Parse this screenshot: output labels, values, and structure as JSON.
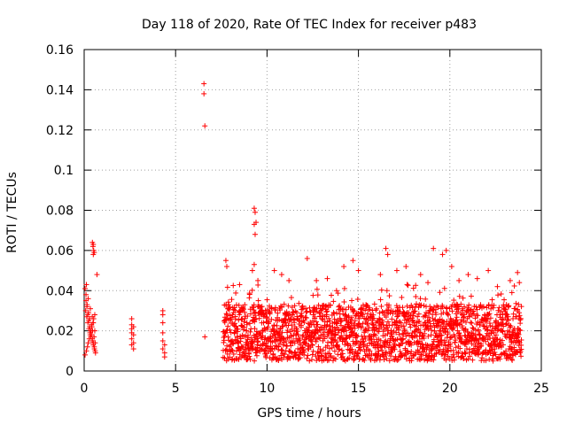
{
  "chart_data": {
    "type": "scatter",
    "title": "Day 118 of 2020, Rate Of TEC Index for receiver p483",
    "xlabel": "GPS time / hours",
    "ylabel": "ROTI / TECUs",
    "xlim": [
      0,
      25
    ],
    "ylim": [
      0,
      0.16
    ],
    "xticks": [
      0,
      5,
      10,
      15,
      20,
      25
    ],
    "yticks": [
      0,
      0.02,
      0.04,
      0.06,
      0.08,
      0.1,
      0.12,
      0.14,
      0.16
    ],
    "xtick_labels": [
      "0",
      "5",
      "10",
      "15",
      "20",
      "25"
    ],
    "ytick_labels": [
      "0",
      "0.02",
      "0.04",
      "0.06",
      "0.08",
      "0.1",
      "0.12",
      "0.14",
      "0.16"
    ],
    "grid": true,
    "marker": "+",
    "color": "#ff0000",
    "series": [
      {
        "name": "ROTI",
        "x": [
          0.05,
          0.1,
          0.15,
          0.2,
          0.25,
          0.3,
          0.35,
          0.4,
          0.45,
          0.5,
          0.55,
          0.6,
          0.05,
          0.12,
          0.18,
          0.22,
          0.28,
          0.33,
          0.38,
          0.42,
          0.48,
          0.52,
          0.58,
          0.08,
          0.14,
          0.2,
          0.26,
          0.32,
          0.36,
          0.44,
          0.5,
          0.56,
          0.62,
          0.1,
          0.16,
          0.24,
          0.3,
          0.4,
          0.46,
          0.54,
          0.6,
          0.12,
          0.22,
          0.34,
          0.44,
          0.5,
          0.58,
          0.45,
          0.48,
          0.5,
          0.52,
          0.55,
          0.5,
          0.7,
          2.6,
          2.6,
          2.6,
          2.6,
          2.6,
          2.6,
          2.7,
          2.7,
          2.7,
          2.7,
          4.3,
          4.3,
          4.3,
          4.3,
          4.3,
          4.3,
          4.4,
          4.4,
          4.4,
          6.55,
          6.55,
          6.6,
          6.6,
          9.3,
          9.35,
          9.4,
          9.3,
          9.35,
          9.3
        ],
        "y": [
          0.041,
          0.035,
          0.032,
          0.028,
          0.025,
          0.022,
          0.02,
          0.018,
          0.016,
          0.014,
          0.012,
          0.01,
          0.008,
          0.01,
          0.012,
          0.014,
          0.016,
          0.018,
          0.02,
          0.022,
          0.024,
          0.026,
          0.028,
          0.03,
          0.027,
          0.024,
          0.021,
          0.019,
          0.017,
          0.015,
          0.013,
          0.011,
          0.009,
          0.038,
          0.033,
          0.029,
          0.026,
          0.023,
          0.02,
          0.017,
          0.014,
          0.043,
          0.036,
          0.031,
          0.027,
          0.024,
          0.02,
          0.064,
          0.062,
          0.063,
          0.06,
          0.059,
          0.058,
          0.048,
          0.026,
          0.023,
          0.021,
          0.019,
          0.016,
          0.013,
          0.022,
          0.018,
          0.014,
          0.011,
          0.03,
          0.028,
          0.024,
          0.019,
          0.015,
          0.011,
          0.013,
          0.009,
          0.007,
          0.143,
          0.138,
          0.122,
          0.017,
          0.081,
          0.079,
          0.074,
          0.073,
          0.068,
          0.053
        ]
      }
    ]
  }
}
